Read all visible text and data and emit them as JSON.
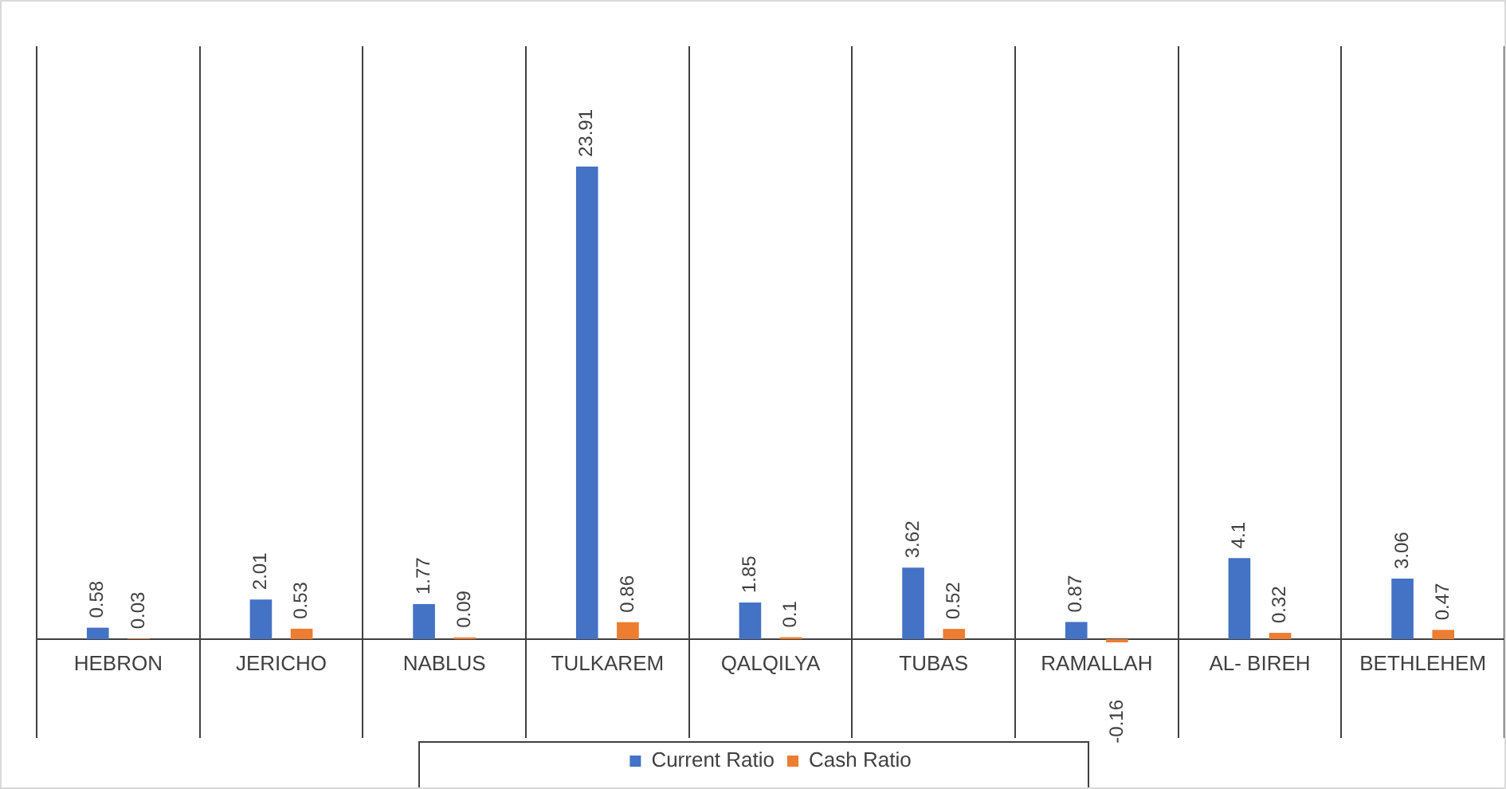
{
  "chart_data": {
    "type": "bar",
    "categories": [
      "HEBRON",
      "JERICHO",
      "NABLUS",
      "TULKAREM",
      "QALQILYA",
      "TUBAS",
      "RAMALLAH",
      "AL- BIREH",
      "BETHLEHEM"
    ],
    "series": [
      {
        "name": "Current Ratio",
        "color": "#4472c4",
        "values": [
          0.58,
          2.01,
          1.77,
          23.91,
          1.85,
          3.62,
          0.87,
          4.1,
          3.06
        ]
      },
      {
        "name": "Cash Ratio",
        "color": "#ed7d31",
        "values": [
          0.03,
          0.53,
          0.09,
          0.86,
          0.1,
          0.52,
          -0.16,
          0.32,
          0.47
        ]
      }
    ],
    "ylim": [
      -5,
      30
    ],
    "tick_labels": "x",
    "grid": "x",
    "legend": "bottom",
    "data_labels": true
  }
}
